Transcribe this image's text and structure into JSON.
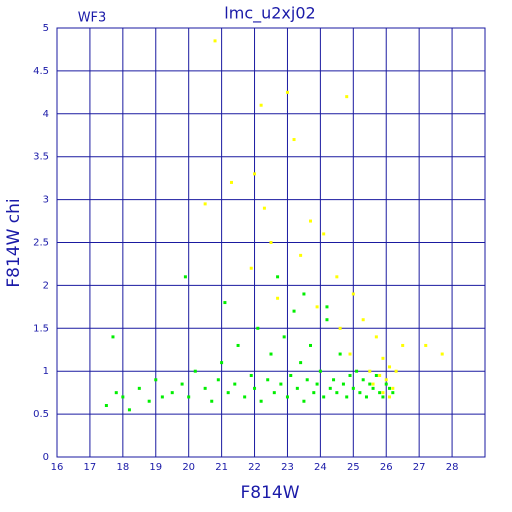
{
  "chart_data": {
    "type": "scatter",
    "title": "lmc_u2xj02",
    "annotation": "WF3",
    "x_label": "F814W",
    "y_label": "F814W chi",
    "xlim": [
      16,
      29
    ],
    "ylim": [
      0,
      5
    ],
    "xticks": [
      16,
      17,
      18,
      19,
      20,
      21,
      22,
      23,
      24,
      25,
      26,
      27,
      28
    ],
    "yticks": [
      0,
      0.5,
      1,
      1.5,
      2,
      2.5,
      3,
      3.5,
      4,
      4.5,
      5
    ],
    "grid": true,
    "series": [
      {
        "color": "#00ee00",
        "x": [
          17.5,
          17.8,
          18.0,
          18.2,
          18.5,
          18.8,
          19.0,
          19.2,
          19.5,
          19.8,
          20.0,
          20.2,
          20.5,
          20.7,
          20.9,
          21.0,
          21.2,
          21.4,
          21.5,
          21.7,
          21.9,
          22.0,
          22.1,
          22.2,
          22.4,
          22.5,
          22.6,
          22.8,
          22.9,
          23.0,
          23.1,
          23.2,
          23.3,
          23.4,
          23.5,
          23.6,
          23.7,
          23.8,
          23.9,
          24.0,
          24.1,
          24.2,
          24.3,
          24.4,
          24.5,
          24.6,
          24.7,
          24.8,
          24.9,
          25.0,
          25.1,
          25.2,
          25.3,
          25.4,
          25.5,
          25.6,
          25.7,
          25.8,
          25.9,
          26.0,
          26.1,
          26.2,
          19.9,
          21.1,
          22.7,
          23.5,
          24.2,
          17.7
        ],
        "values": [
          0.6,
          0.75,
          0.7,
          0.55,
          0.8,
          0.65,
          0.9,
          0.7,
          0.75,
          0.85,
          0.7,
          1.0,
          0.8,
          0.65,
          0.9,
          1.1,
          0.75,
          0.85,
          1.3,
          0.7,
          0.95,
          0.8,
          1.5,
          0.65,
          0.9,
          1.2,
          0.75,
          0.85,
          1.4,
          0.7,
          0.95,
          1.7,
          0.8,
          1.1,
          0.65,
          0.9,
          1.3,
          0.75,
          0.85,
          1.0,
          0.7,
          1.6,
          0.8,
          0.9,
          0.75,
          1.2,
          0.85,
          0.7,
          0.95,
          0.8,
          1.0,
          0.75,
          0.9,
          0.7,
          0.85,
          0.8,
          0.95,
          0.75,
          0.7,
          0.85,
          0.8,
          0.75,
          2.1,
          1.8,
          2.1,
          1.9,
          1.75,
          1.4
        ]
      },
      {
        "color": "#ffff00",
        "x": [
          20.8,
          23.0,
          22.2,
          24.8,
          23.2,
          22.0,
          21.3,
          20.5,
          22.3,
          23.7,
          24.1,
          22.5,
          23.4,
          21.9,
          24.5,
          25.0,
          22.7,
          23.9,
          25.3,
          24.6,
          25.7,
          26.5,
          27.2,
          27.7,
          25.9,
          26.1,
          25.8,
          26.0,
          25.6,
          26.2,
          25.9,
          26.1,
          25.5,
          24.9,
          26.3
        ],
        "values": [
          4.85,
          4.25,
          4.1,
          4.2,
          3.7,
          3.3,
          3.2,
          2.95,
          2.9,
          2.75,
          2.6,
          2.5,
          2.35,
          2.2,
          2.1,
          1.9,
          1.85,
          1.75,
          1.6,
          1.5,
          1.4,
          1.3,
          1.3,
          1.2,
          1.15,
          1.05,
          0.95,
          0.9,
          0.85,
          0.8,
          0.75,
          0.7,
          1.0,
          1.2,
          1.0
        ]
      }
    ]
  }
}
